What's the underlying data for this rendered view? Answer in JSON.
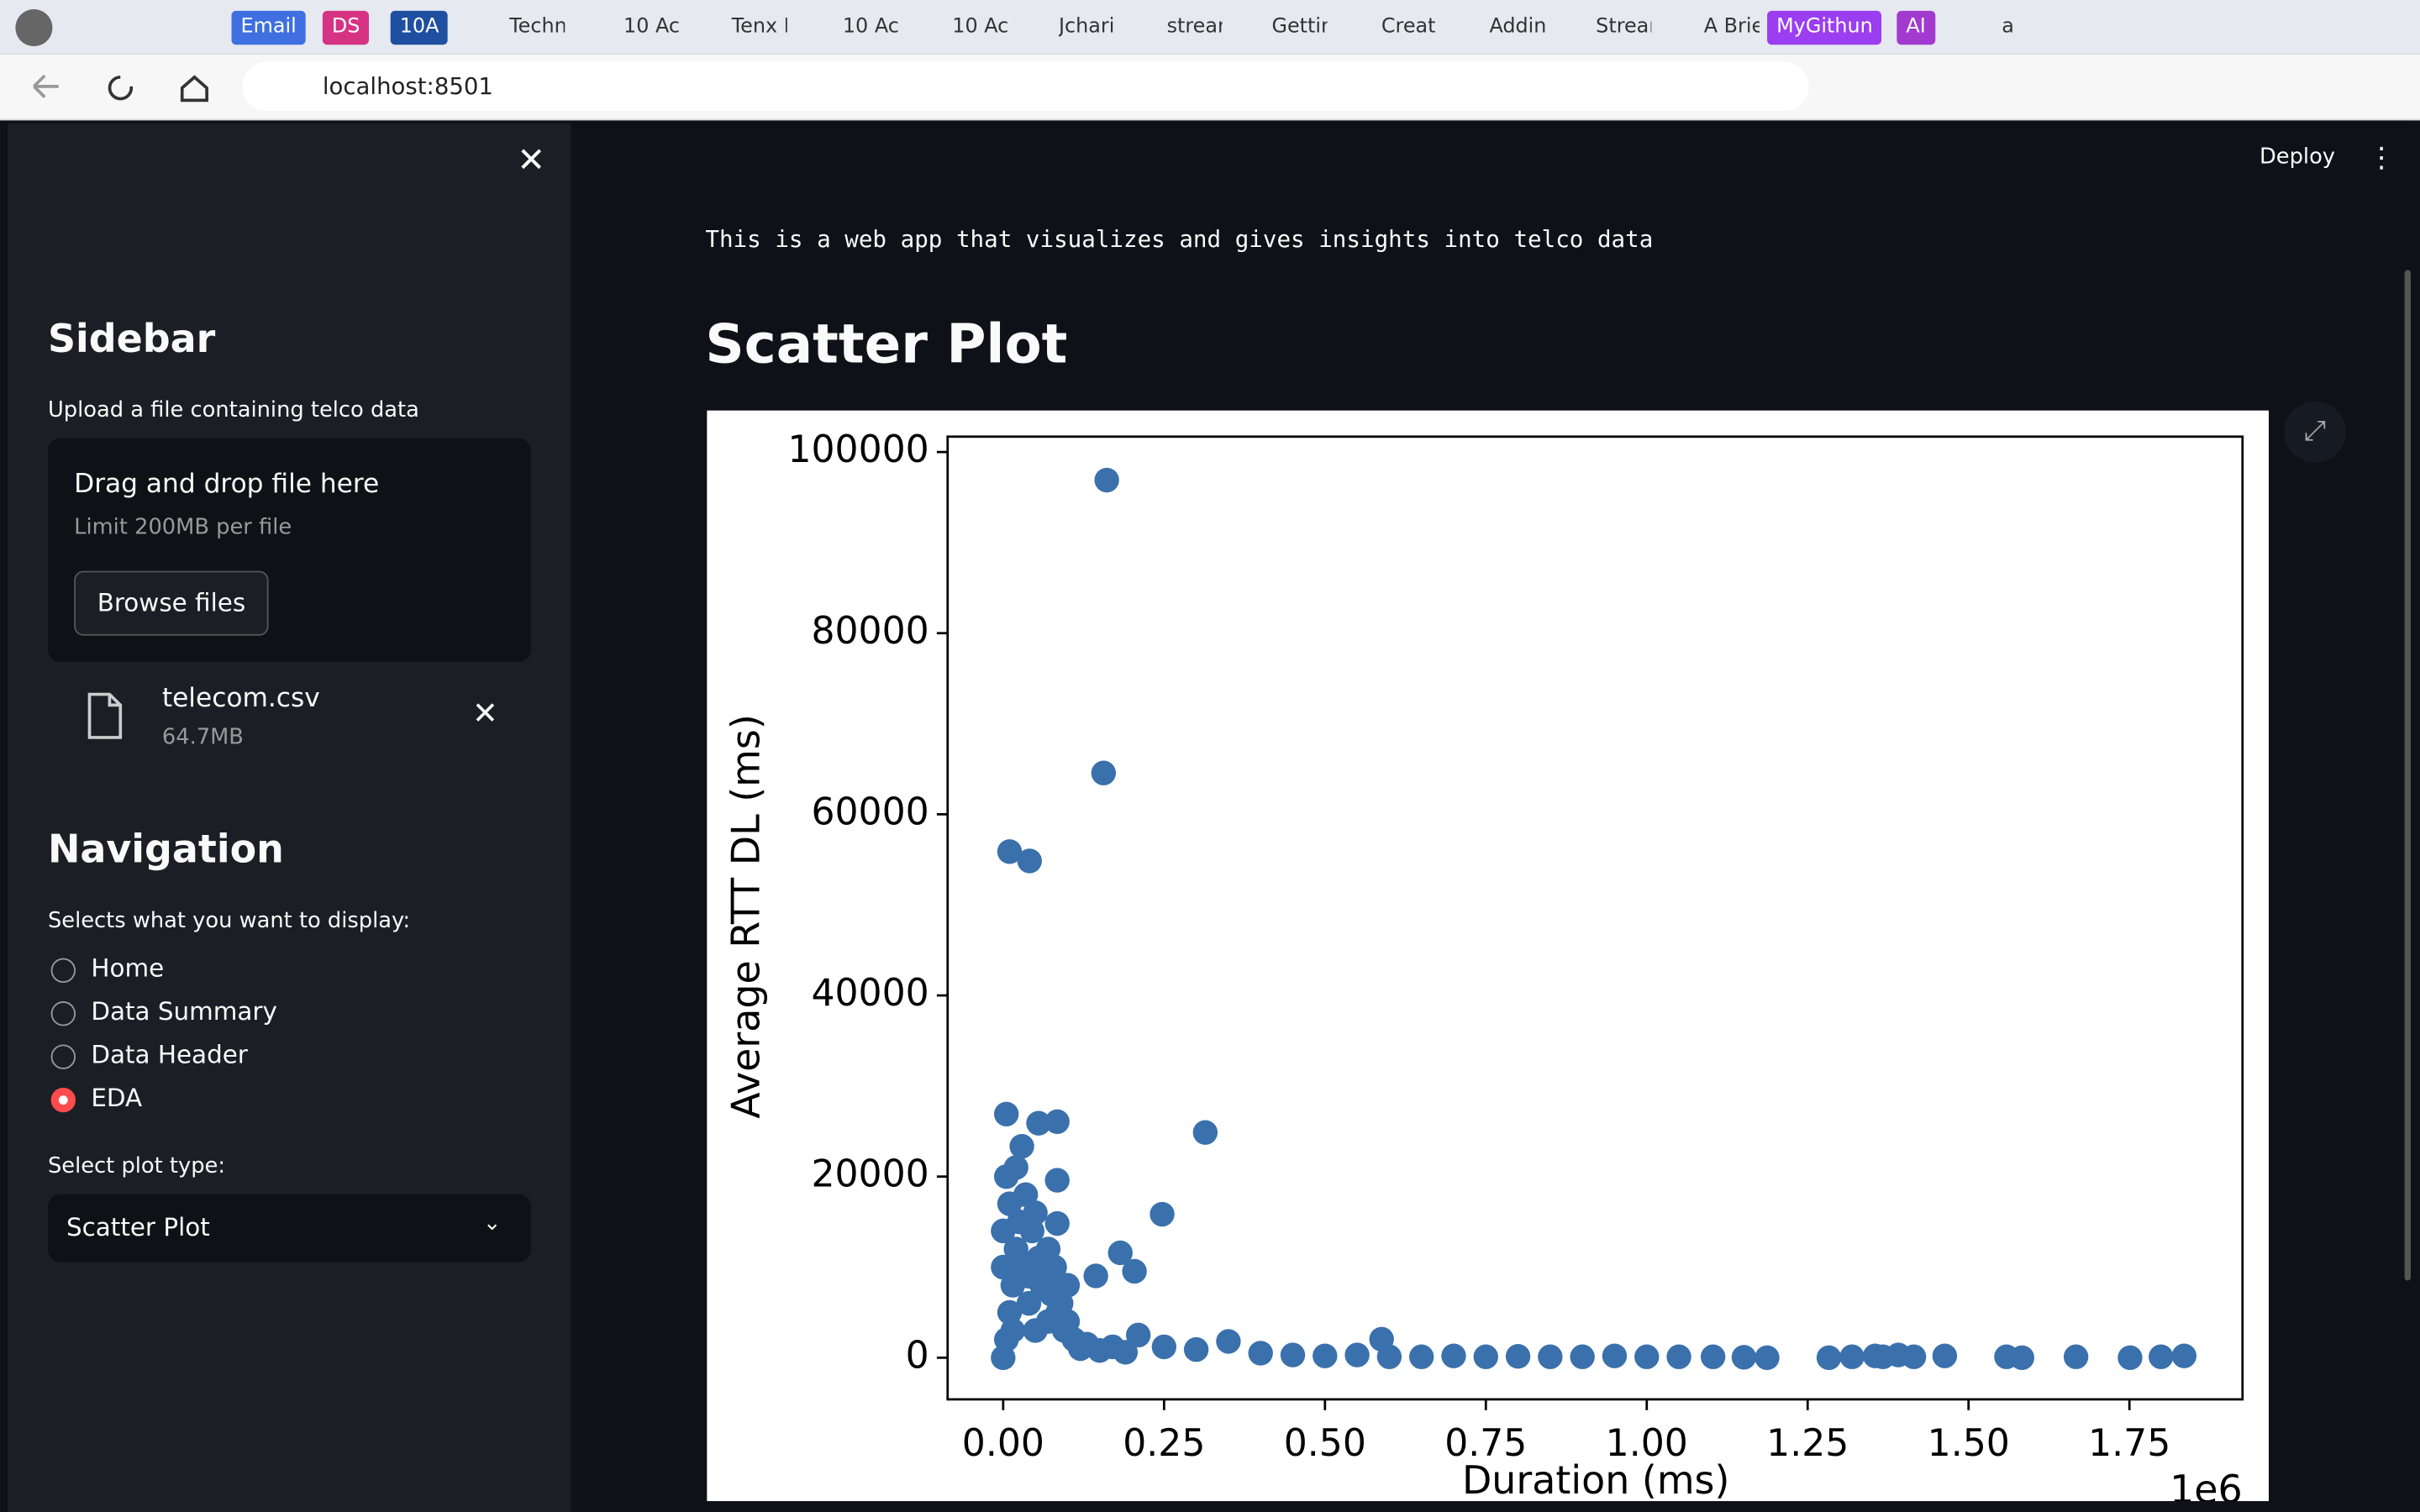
{
  "browser": {
    "tabs": [
      "Email",
      "DS",
      "10A",
      "Techn",
      "10 Ac",
      "Tenx P",
      "10 Ac",
      "10 Ac",
      "Jchari",
      "strear",
      "Gettin",
      "Creat",
      "Addin",
      "Strear",
      "A Brie",
      "MyGithun",
      "AI",
      "a"
    ],
    "url": "localhost:8501"
  },
  "header": {
    "deploy": "Deploy"
  },
  "sidebar": {
    "title": "Sidebar",
    "upload_label": "Upload a file containing telco data",
    "dropzone_title": "Drag and drop file here",
    "dropzone_limit": "Limit 200MB per file",
    "browse_button": "Browse files",
    "file_name": "telecom.csv",
    "file_size": "64.7MB",
    "nav_title": "Navigation",
    "nav_label": "Selects what you want to display:",
    "nav_options": [
      "Home",
      "Data Summary",
      "Data Header",
      "EDA"
    ],
    "selected": "EDA",
    "plot_label": "Select plot type:",
    "plot_select": "Scatter Plot"
  },
  "main": {
    "description": "This is a web app that visualizes and gives insights into telco data",
    "heading": "Scatter Plot"
  },
  "chart_data": {
    "type": "scatter",
    "xlabel": "Duration (ms)",
    "ylabel": "Average RTT DL (ms)",
    "x_offset": "1e6",
    "color": "#3a70ac",
    "x": [
      0.161,
      0.156,
      0.01,
      0.041,
      0.314,
      0.247,
      0.182,
      0.144,
      0.204,
      0.005,
      0.084,
      0.055,
      0.029,
      0.084,
      0.084,
      0.588,
      0,
      0.005,
      0.01,
      0.015,
      0.02,
      0.01,
      0.025,
      0.03,
      0.04,
      0.05,
      0.06,
      0.07,
      0.08,
      0.09,
      0.1,
      0.11,
      0.12,
      0.005,
      0.02,
      0.035,
      0.045,
      0.055,
      0.065,
      0.075,
      0.085,
      0.095,
      0,
      0,
      0.015,
      0.04,
      0.05,
      0.07,
      0.1,
      0.13,
      0.15,
      0.17,
      0.19,
      0.21,
      0.25,
      0.3,
      0.35,
      0.4,
      0.45,
      0.5,
      0.55,
      0.6,
      0.65,
      0.7,
      0.75,
      0.8,
      0.85,
      0.9,
      0.95,
      1,
      1.05,
      1.103,
      1.151,
      1.187,
      1.283,
      1.319,
      1.355,
      1.367,
      1.391,
      1.415,
      1.463,
      1.559,
      1.583,
      1.667,
      1.751,
      1.799,
      1.835
    ],
    "values": [
      96900,
      64560,
      55880,
      54850,
      24870,
      15840,
      11580,
      9030,
      9540,
      26900,
      26060,
      25890,
      23340,
      19590,
      14820,
      2040,
      0,
      2000,
      5000,
      8000,
      12000,
      17000,
      15000,
      10000,
      6000,
      3000,
      8000,
      12000,
      10000,
      6000,
      4000,
      2000,
      1000,
      20000,
      21000,
      18000,
      14000,
      11000,
      9000,
      7000,
      5000,
      3000,
      10000,
      14000,
      3000,
      9000,
      16000,
      4000,
      8000,
      1500,
      800,
      1200,
      600,
      2500,
      1200,
      900,
      1800,
      500,
      300,
      200,
      300,
      100,
      100,
      200,
      100,
      150,
      100,
      100,
      200,
      100,
      100,
      100,
      50,
      0,
      0,
      100,
      200,
      100,
      300,
      100,
      200,
      100,
      0,
      100,
      0,
      100,
      200
    ],
    "xlim": [
      -0.0863,
      1.9257
    ],
    "ylim": [
      -4600,
      101700
    ],
    "xticks": [
      {
        "value": 0,
        "label": "0.00"
      },
      0.25,
      {
        "value": 0.5,
        "label": "0.50"
      },
      0.75,
      {
        "value": 1,
        "label": "1.00"
      },
      1.25,
      {
        "value": 1.5,
        "label": "1.50"
      },
      1.75
    ],
    "yticks": [
      0,
      20000,
      40000,
      60000,
      80000,
      100000
    ]
  }
}
